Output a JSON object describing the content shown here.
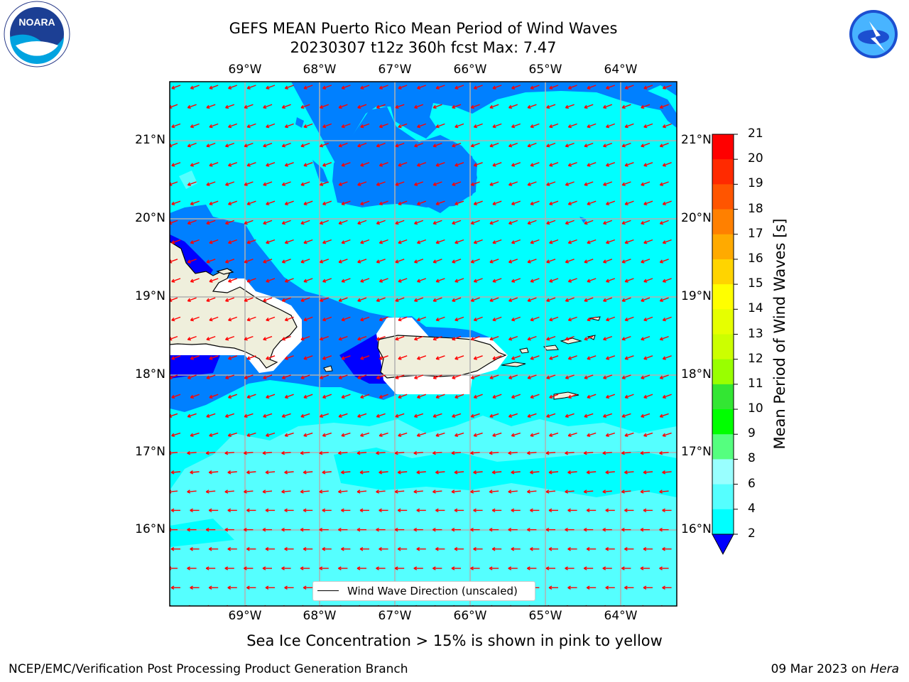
{
  "title_line1": "GEFS MEAN Puerto Rico Mean Period of Wind Waves",
  "title_line2": "20230307 t12z 360h fcst   Max: 7.47",
  "longitude_labels": [
    "69°W",
    "68°W",
    "67°W",
    "66°W",
    "65°W",
    "64°W"
  ],
  "latitude_labels": [
    "21°N",
    "20°N",
    "19°N",
    "18°N",
    "17°N",
    "16°N"
  ],
  "colorbar": {
    "label": "Mean Period of Wind Waves [s]",
    "ticks": [
      "21",
      "20",
      "19",
      "18",
      "17",
      "16",
      "15",
      "14",
      "13",
      "12",
      "11",
      "10",
      "9",
      "8",
      "6",
      "4",
      "2"
    ],
    "colors": [
      "#ff0000",
      "#ff2a00",
      "#ff5500",
      "#ff8000",
      "#ffaa00",
      "#ffd400",
      "#ffff00",
      "#e6ff00",
      "#ccff00",
      "#99ff00",
      "#33e633",
      "#00ff00",
      "#55ff7f",
      "#99ffff",
      "#55ffff",
      "#00ffff",
      "#0080ff",
      "#0000ff"
    ]
  },
  "legend_text": "Wind Wave Direction (unscaled)",
  "footer_note": "Sea Ice Concentration > 15% is shown in pink to yellow",
  "credit": "NCEP/EMC/Verification Post Processing Product Generation Branch",
  "date_text": "09 Mar 2023 on",
  "date_host": "Hera",
  "logos": {
    "left": "NOARA",
    "right": "NATIONAL WEATHER SERVICE"
  },
  "colors": {
    "cyan": "#00ffff",
    "light_cyan": "#55ffff",
    "blue": "#0080ff",
    "dark_blue": "#0000ff",
    "land": "#efefdc",
    "arrow": "#ff0000"
  }
}
